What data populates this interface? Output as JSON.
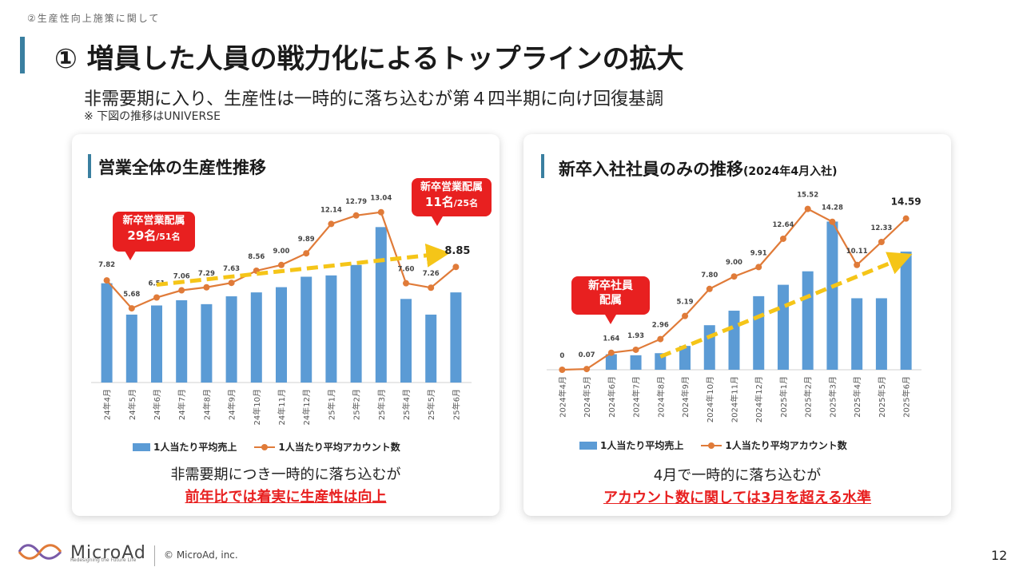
{
  "header": {
    "section_label": "②生産性向上施策に関して",
    "title": "① 増員した人員の戦力化によるトップラインの拡大",
    "subtitle": "非需要期に入り、生産性は一時的に落ち込むが第４四半期に向け回復基調",
    "note": "※ 下図の推移はUNIVERSE"
  },
  "left_card": {
    "title": "営業全体の生産性推移",
    "legend_bar": "1人当たり平均売上",
    "legend_line": "1人当たり平均アカウント数",
    "callout1_big": "新卒営業配属",
    "callout1_line2": "29名",
    "callout1_small": "/51名",
    "callout2_big": "新卒営業配属",
    "callout2_line2": "11名",
    "callout2_small": "/25名",
    "trend_label": "8.85",
    "caption1": "非需要期につき一時的に落ち込むが",
    "caption2": "前年比では着実に生産性は向上"
  },
  "right_card": {
    "title": "新卒入社社員のみの推移",
    "title_note": "(2024年4月入社)",
    "legend_bar": "1人当たり平均売上",
    "legend_line": "1人当たり平均アカウント数",
    "callout_line1": "新卒社員",
    "callout_line2": "配属",
    "caption1": "4月で一時的に落ち込むが",
    "caption2": "アカウント数に関しては3月を超える水準"
  },
  "footer": {
    "brand": "MicroAd",
    "tagline": "Redesigning the Future Life",
    "copyright": "© MicroAd, inc.",
    "page": "12"
  },
  "colors": {
    "bar": "#5b9bd5",
    "line": "#e07b39",
    "trend": "#f5c518",
    "accent": "#3a7fa0",
    "highlight": "#e82020"
  },
  "chart_data": [
    {
      "type": "bar",
      "title": "営業全体の生産性推移",
      "categories": [
        "24年4月",
        "24年5月",
        "24年6月",
        "24年7月",
        "24年8月",
        "24年9月",
        "24年10月",
        "24年11月",
        "24年12月",
        "25年1月",
        "25年2月",
        "25年3月",
        "25年4月",
        "25年5月",
        "25年6月"
      ],
      "series": [
        {
          "name": "1人当たり平均売上",
          "type": "bar",
          "values": [
            7.6,
            5.2,
            5.9,
            6.3,
            6.0,
            6.6,
            6.9,
            7.3,
            8.1,
            8.2,
            9.0,
            11.9,
            6.4,
            5.2,
            6.9
          ]
        },
        {
          "name": "1人当たり平均アカウント数",
          "type": "line",
          "values": [
            7.82,
            5.68,
            6.51,
            7.06,
            7.29,
            7.63,
            8.56,
            9.0,
            9.89,
            12.14,
            12.79,
            13.04,
            7.6,
            7.26,
            8.85
          ]
        }
      ],
      "trend_label": "8.85",
      "ylim": [
        0,
        14
      ]
    },
    {
      "type": "bar",
      "title": "新卒入社社員のみの推移",
      "categories": [
        "2024年4月",
        "2024年5月",
        "2024年6月",
        "2024年7月",
        "2024年8月",
        "2024年9月",
        "2024年10月",
        "2024年11月",
        "2024年12月",
        "2025年1月",
        "2025年2月",
        "2025年3月",
        "2025年4月",
        "2025年5月",
        "2025年6月"
      ],
      "series": [
        {
          "name": "1人当たり平均売上",
          "type": "bar",
          "values": [
            0,
            0,
            1.5,
            1.4,
            1.6,
            2.3,
            4.3,
            5.7,
            7.1,
            8.2,
            9.5,
            14.3,
            6.9,
            6.9,
            11.4
          ]
        },
        {
          "name": "1人当たり平均アカウント数",
          "type": "line",
          "values": [
            0,
            0.07,
            1.64,
            1.93,
            2.96,
            5.19,
            7.8,
            9.0,
            9.91,
            12.64,
            15.52,
            14.28,
            10.11,
            12.33,
            14.59
          ]
        }
      ],
      "ylim": [
        0,
        16.8
      ]
    }
  ]
}
